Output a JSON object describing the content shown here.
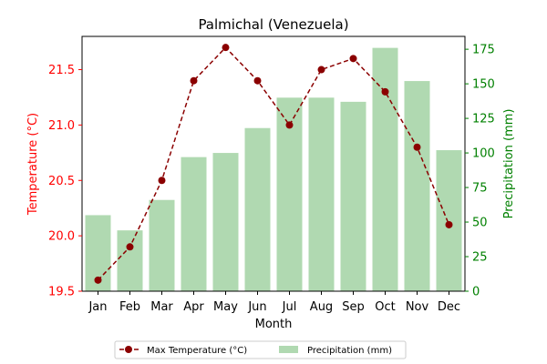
{
  "chart_data": {
    "type": "bar+line",
    "title": "Palmichal (Venezuela)",
    "xlabel": "Month",
    "categories": [
      "Jan",
      "Feb",
      "Mar",
      "Apr",
      "May",
      "Jun",
      "Jul",
      "Aug",
      "Sep",
      "Oct",
      "Nov",
      "Dec"
    ],
    "series": [
      {
        "name": "Precipitation (mm)",
        "type": "bar",
        "axis": "right",
        "color": "#b0d9b1",
        "values": [
          55,
          44,
          66,
          97,
          100,
          118,
          140,
          140,
          137,
          176,
          152,
          102
        ]
      },
      {
        "name": "Max Temperature (°C)",
        "type": "line",
        "axis": "left",
        "color": "#8b0000",
        "line_style": "dashed",
        "marker": "circle",
        "values": [
          19.6,
          19.9,
          20.5,
          21.4,
          21.7,
          21.4,
          21.0,
          21.5,
          21.6,
          21.3,
          20.8,
          20.1
        ]
      }
    ],
    "y_left": {
      "label": "Temperature (°C)",
      "color": "#ff0000",
      "range": [
        19.5,
        21.8
      ],
      "ticks": [
        "19.5",
        "20.0",
        "20.5",
        "21.0",
        "21.5"
      ]
    },
    "y_right": {
      "label": "Precipitation (mm)",
      "color": "#008000",
      "range": [
        0,
        184.3
      ],
      "ticks": [
        "0",
        "25",
        "50",
        "75",
        "100",
        "125",
        "150",
        "175"
      ]
    },
    "grid": false,
    "legend_placement": "bottom-center"
  }
}
